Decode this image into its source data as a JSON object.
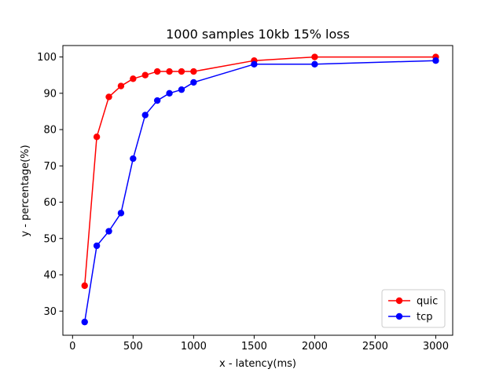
{
  "chart_data": {
    "type": "line",
    "title": "1000 samples 10kb 15% loss",
    "xlabel": "x - latency(ms)",
    "ylabel": "y - percentage(%)",
    "xlim": [
      -80,
      3140
    ],
    "ylim": [
      23.35,
      103.15
    ],
    "xticks": [
      0,
      500,
      1000,
      1500,
      2000,
      2500,
      3000
    ],
    "yticks": [
      30,
      40,
      50,
      60,
      70,
      80,
      90,
      100
    ],
    "grid": false,
    "legend_position": "lower right",
    "series": [
      {
        "name": "quic",
        "color": "#ff0000",
        "marker": "circle",
        "x": [
          100,
          200,
          300,
          400,
          500,
          600,
          700,
          800,
          900,
          1000,
          1500,
          2000,
          3000
        ],
        "y": [
          37,
          78,
          89,
          92,
          94,
          95,
          96,
          96,
          96,
          96,
          99,
          100,
          100
        ]
      },
      {
        "name": "tcp",
        "color": "#0000ff",
        "marker": "circle",
        "x": [
          100,
          200,
          300,
          400,
          500,
          600,
          700,
          800,
          900,
          1000,
          1500,
          2000,
          3000
        ],
        "y": [
          27,
          48,
          52,
          57,
          72,
          84,
          88,
          90,
          91,
          93,
          98,
          98,
          99
        ]
      }
    ]
  }
}
